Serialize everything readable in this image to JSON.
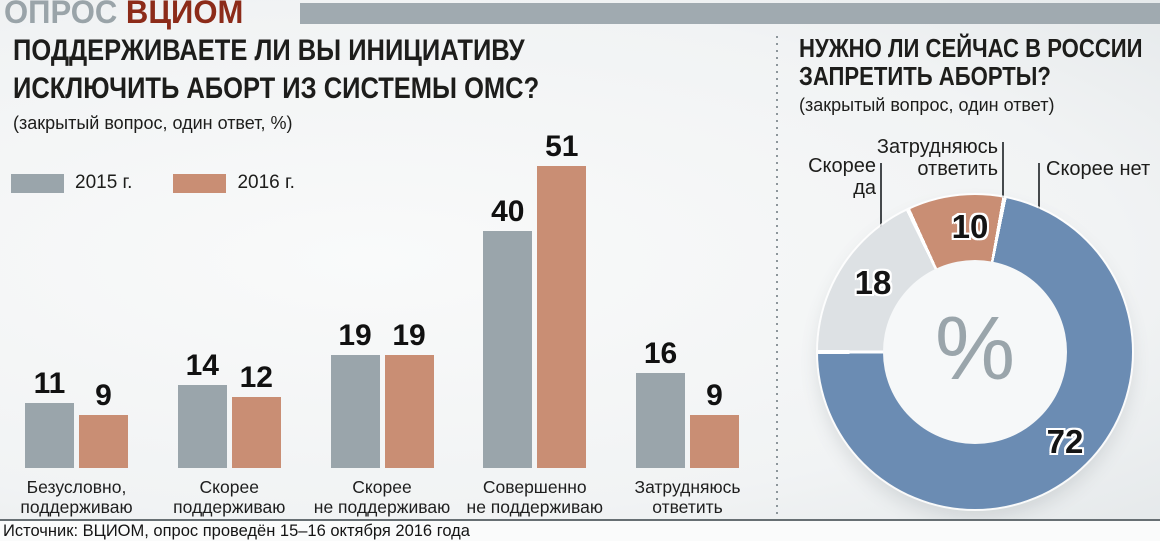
{
  "header": {
    "brand_gray": "ОПРОС",
    "brand_red": "ВЦИОМ"
  },
  "left_chart": {
    "title_lines": [
      "ПОДДЕРЖИВАЕТЕ ЛИ ВЫ ИНИЦИАТИВУ",
      "ИСКЛЮЧИТЬ АБОРТ ИЗ СИСТЕМЫ ОМС?"
    ],
    "subtitle": "(закрытый вопрос, один ответ, %)",
    "legend": [
      {
        "label": "2015 г."
      },
      {
        "label": "2016 г."
      }
    ]
  },
  "right_chart": {
    "title_lines": [
      "НУЖНО ЛИ СЕЙЧАС В РОССИИ",
      "ЗАПРЕТИТЬ АБОРТЫ?"
    ],
    "subtitle": "(закрытый вопрос, один ответ)",
    "center_symbol": "%",
    "callouts": [
      {
        "lines": [
          "Скорее",
          "да"
        ]
      },
      {
        "lines": [
          "Затрудняюсь",
          "ответить"
        ]
      },
      {
        "lines": [
          "Скорее нет"
        ]
      }
    ]
  },
  "footer": {
    "source": "Источник: ВЦИОМ, опрос проведён 15–16 октября 2016 года"
  },
  "colors": {
    "bar_2015": "#9aa5ab",
    "bar_2016": "#c98e74",
    "donut_rather_yes": "#dde1e4",
    "donut_hard_to_say": "#c98e74",
    "donut_rather_no": "#6b8cb3",
    "brand_red": "#8c2b19",
    "brand_gray": "#9aa4a9"
  },
  "chart_data": [
    {
      "type": "bar",
      "title": "ПОДДЕРЖИВАЕТЕ ЛИ ВЫ ИНИЦИАТИВУ ИСКЛЮЧИТЬ АБОРТ ИЗ СИСТЕМЫ ОМС?",
      "subtitle": "(закрытый вопрос, один ответ, %)",
      "categories": [
        [
          "Безусловно,",
          "поддерживаю"
        ],
        [
          "Скорее",
          "поддерживаю"
        ],
        [
          "Скорее",
          "не поддерживаю"
        ],
        [
          "Совершенно",
          "не поддерживаю"
        ],
        [
          "Затрудняюсь",
          "ответить"
        ]
      ],
      "series": [
        {
          "name": "2015 г.",
          "color": "#9aa5ab",
          "values": [
            11,
            14,
            19,
            40,
            16
          ]
        },
        {
          "name": "2016 г.",
          "color": "#c98e74",
          "values": [
            9,
            12,
            19,
            51,
            9
          ]
        }
      ],
      "ylim": [
        0,
        57
      ],
      "grid": false,
      "legend_position": "top-left",
      "value_labels": true
    },
    {
      "type": "pie",
      "subtype": "donut",
      "title": "НУЖНО ЛИ СЕЙЧАС В РОССИИ ЗАПРЕТИТЬ АБОРТЫ?",
      "subtitle": "(закрытый вопрос, один ответ)",
      "labels": [
        "Скорее да",
        "Затрудняюсь ответить",
        "Скорее нет"
      ],
      "values": [
        18,
        10,
        72
      ],
      "colors": [
        "#dde1e4",
        "#c98e74",
        "#6b8cb3"
      ],
      "start_angle_deg": 270,
      "center_label": "%"
    }
  ]
}
